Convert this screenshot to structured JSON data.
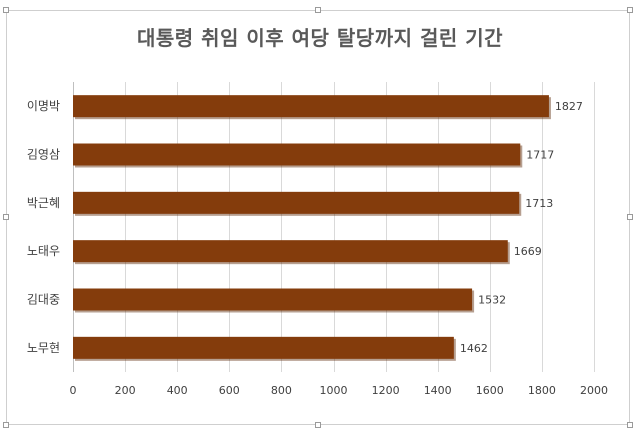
{
  "chart_data": {
    "type": "bar",
    "orientation": "horizontal",
    "title": "대통령 취임 이후 여당 탈당까지 걸린 기간",
    "categories": [
      "이명박",
      "김영삼",
      "박근혜",
      "노태우",
      "김대중",
      "노무현"
    ],
    "values": [
      1827,
      1717,
      1713,
      1669,
      1532,
      1462
    ],
    "xlim": [
      0,
      2000
    ],
    "x_ticks": [
      0,
      200,
      400,
      600,
      800,
      1000,
      1200,
      1400,
      1600,
      1800,
      2000
    ],
    "grid": true,
    "data_labels": true,
    "legend": "none",
    "bar_color": "#843C0C",
    "bar_shadow_color": "#5e2a08"
  }
}
